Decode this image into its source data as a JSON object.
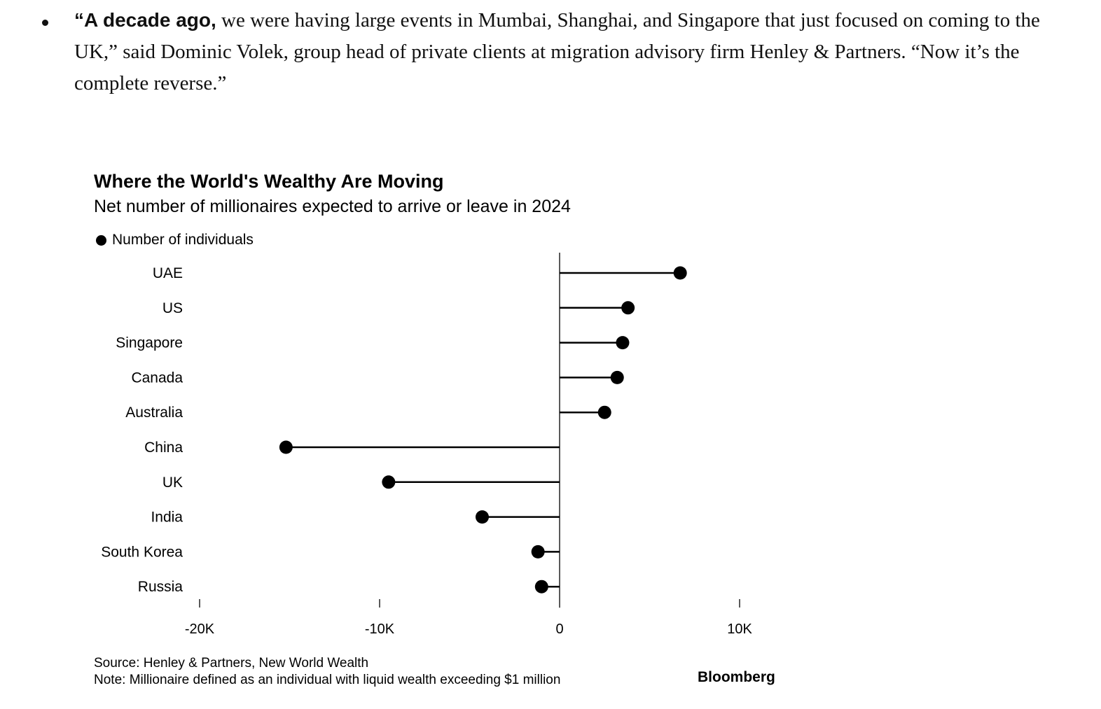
{
  "article": {
    "lead": "“A decade ago,",
    "body": " we were having large events in Mumbai, Shanghai, and Singapore that just focused on coming to the UK,” said Dominic Volek, group head of private clients at migration advisory firm Henley & Partners. “Now it’s the complete reverse.”"
  },
  "chart_data": {
    "type": "lollipop",
    "title": "Where the World's Wealthy Are Moving",
    "subtitle": "Net number of millionaires expected to arrive or leave in 2024",
    "legend": {
      "label": "Number of individuals",
      "placement": "top-left"
    },
    "orientation": "horizontal",
    "categories": [
      "UAE",
      "US",
      "Singapore",
      "Canada",
      "Australia",
      "China",
      "UK",
      "India",
      "South Korea",
      "Russia"
    ],
    "series": [
      {
        "name": "Number of individuals",
        "values": [
          6700,
          3800,
          3500,
          3200,
          2500,
          -15200,
          -9500,
          -4300,
          -1200,
          -1000
        ]
      }
    ],
    "xlim": [
      -20000,
      10000
    ],
    "xticks": [
      {
        "value": -20000,
        "label": "-20K"
      },
      {
        "value": -10000,
        "label": "-10K"
      },
      {
        "value": 0,
        "label": "0"
      },
      {
        "value": 10000,
        "label": "10K"
      }
    ],
    "grid": false,
    "source": "Source: Henley & Partners, New World Wealth",
    "note": "Note: Millionaire defined as an individual with liquid wealth exceeding $1 million",
    "brand": "Bloomberg",
    "colors": {
      "marks": "#000000",
      "background": "#ffffff"
    }
  }
}
